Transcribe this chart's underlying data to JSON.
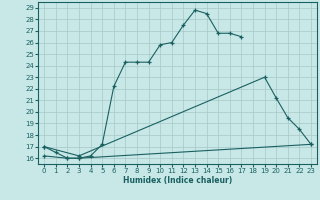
{
  "xlabel": "Humidex (Indice chaleur)",
  "bg_color": "#c8e8e8",
  "grid_color": "#a8c8c8",
  "line_color": "#1a6060",
  "xlim": [
    -0.5,
    23.5
  ],
  "ylim": [
    15.5,
    29.5
  ],
  "yticks": [
    16,
    17,
    18,
    19,
    20,
    21,
    22,
    23,
    24,
    25,
    26,
    27,
    28,
    29
  ],
  "xticks": [
    0,
    1,
    2,
    3,
    4,
    5,
    6,
    7,
    8,
    9,
    10,
    11,
    12,
    13,
    14,
    15,
    16,
    17,
    18,
    19,
    20,
    21,
    22,
    23
  ],
  "line1_x": [
    0,
    1,
    2,
    3,
    4,
    5,
    6,
    7,
    8,
    9,
    10,
    11,
    12,
    13,
    14,
    15,
    16,
    17
  ],
  "line1_y": [
    17.0,
    16.5,
    16.0,
    16.0,
    16.2,
    17.2,
    22.2,
    24.3,
    24.3,
    24.3,
    25.8,
    26.0,
    27.5,
    28.8,
    28.5,
    26.8,
    26.8,
    26.5
  ],
  "line2_x": [
    0,
    3,
    19,
    20,
    21,
    22,
    23
  ],
  "line2_y": [
    17.0,
    16.2,
    23.0,
    21.2,
    19.5,
    18.5,
    17.2
  ],
  "line3_x": [
    0,
    2,
    3,
    23
  ],
  "line3_y": [
    16.2,
    16.0,
    16.0,
    17.2
  ]
}
